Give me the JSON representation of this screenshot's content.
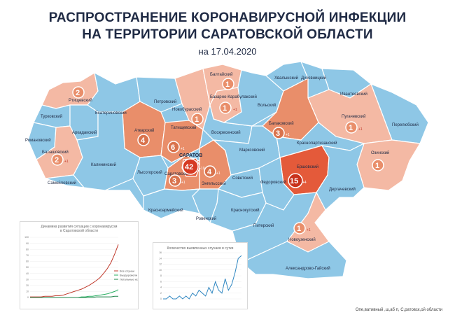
{
  "header": {
    "title_line1": "РАСПРОСТРАНЕНИЕ КОРОНАВИРУСНОЙ ИНФЕКЦИИ",
    "title_line2": "НА ТЕРРИТОРИИ САРАТОВСКОЙ ОБЛАСТИ",
    "date": "на 17.04.2020"
  },
  "colors": {
    "no_cases": "#8ec7e6",
    "low": "#f4b9a4",
    "medium": "#e98e6a",
    "high": "#e45a3a",
    "border": "#ffffff"
  },
  "districts": {
    "rtishevsky": "Ртищевский",
    "turkovsky": "Турковский",
    "arkadaksky": "Аркадакский",
    "romanovsky": "Романовский",
    "balashovsky": "Балашовский",
    "samoylovsky": "Самойловский",
    "ekaterinovsky": "Екатериновский",
    "petrovsky": "Петровский",
    "atkarsky": "Аткарский",
    "kalininsky": "Калининский",
    "lysogorsky": "Лысогорский",
    "tatishchevsky": "Татищевский",
    "saratov": "САРАТОВ",
    "saratovsky": "Саратовский",
    "engelssky": "Энгельсский",
    "krasnoarmeysky": "Красноармейский",
    "rovensky": "Ровенский",
    "krasnokutsky": "Краснокутский",
    "sovetsky": "Советский",
    "marksovsky": "Марксовский",
    "voskresensky": "Воскресенский",
    "novoburassky": "Новобурасский",
    "bazarno_karabulaksky": "Базарно-Карабулакский",
    "baltaysky": "Балтайский",
    "volsky": "Вольский",
    "khvalynsky": "Хвалынский",
    "dukhovnitsky": "Духовницкий",
    "ivanteevsky": "Ивантеевский",
    "pugachevsky": "Пугачевский",
    "perelyubsky": "Перелюбский",
    "balakovsky": "Балаковский",
    "krasnopartizansky": "Краснопартизанский",
    "ozinsky": "Озинский",
    "ershovsky": "Ершовский",
    "dergachevsky": "Дергачевский",
    "fedorovsky": "Федоровский",
    "pitersky": "Питерский",
    "novouzensky": "Новоузенский",
    "aleksandrovo_gaysky": "Александрово-Гайский"
  },
  "cases": {
    "rtishevsky": {
      "count": "2"
    },
    "balashovsky": {
      "count": "2",
      "delta": "+1"
    },
    "atkarsky": {
      "count": "4"
    },
    "tatishchevsky": {
      "count": "6",
      "delta": "+1"
    },
    "saratov": {
      "count": "42",
      "delta": "+10"
    },
    "saratovsky": {
      "count": "3",
      "delta": "+1"
    },
    "engelssky": {
      "count": "4",
      "delta": "+1"
    },
    "baltaysky": {
      "count": "1"
    },
    "bazarno_karabulaksky": {
      "count": "1",
      "delta": "+1"
    },
    "novoburassky": {
      "count": "1"
    },
    "balakovsky": {
      "count": "3",
      "delta": "+1"
    },
    "pugachevsky": {
      "count": "1",
      "delta": "+1"
    },
    "ozinsky": {
      "count": "1"
    },
    "ershovsky": {
      "count": "15",
      "delta": "+4"
    },
    "novouzensky": {
      "count": "1",
      "delta": "+1"
    }
  },
  "mini_charts": {
    "dynamics": {
      "title_line1": "Динамика развития ситуации с коронавирусом",
      "title_line2": "в Саратовской области",
      "legend": [
        "Все случаи",
        "Выздоровели",
        "Летальные исходы"
      ]
    },
    "daily": {
      "title": "Количество выявленных случаев в сутки"
    }
  },
  "chart_data": [
    {
      "type": "line",
      "title": "Динамика развития ситуации с коронавирусом в Саратовской области",
      "ylim": [
        0,
        100
      ],
      "y_ticks": [
        "100",
        "90",
        "80",
        "70",
        "60",
        "50",
        "40",
        "30",
        "20",
        "10",
        "0"
      ],
      "series": [
        {
          "name": "Все случаи",
          "color": "#c0392b",
          "values": [
            1,
            1,
            1,
            1,
            2,
            2,
            2,
            3,
            3,
            4,
            6,
            8,
            10,
            12,
            14,
            17,
            20,
            24,
            28,
            33,
            40,
            48,
            58,
            72,
            88
          ]
        },
        {
          "name": "Выздоровели",
          "color": "#27ae60",
          "values": [
            0,
            0,
            0,
            0,
            0,
            0,
            0,
            0,
            0,
            0,
            0,
            0,
            0,
            0,
            1,
            1,
            2,
            2,
            3,
            4,
            5,
            6,
            8,
            10,
            13
          ]
        },
        {
          "name": "Летальные исходы",
          "color": "#1e8449",
          "values": [
            0,
            0,
            0,
            0,
            0,
            0,
            0,
            0,
            0,
            0,
            0,
            0,
            0,
            0,
            0,
            0,
            0,
            0,
            1,
            1,
            1,
            1,
            1,
            2,
            2
          ]
        }
      ]
    },
    {
      "type": "line",
      "title": "Количество выявленных случаев в сутки",
      "ylim": [
        0,
        16
      ],
      "y_ticks": [
        "16",
        "14",
        "12",
        "10",
        "8",
        "6",
        "4",
        "2",
        "0"
      ],
      "series": [
        {
          "name": "",
          "color": "#2e86c1",
          "values": [
            0,
            0,
            1,
            0,
            0,
            1,
            0,
            1,
            0,
            2,
            1,
            3,
            2,
            1,
            4,
            2,
            6,
            3,
            2,
            7,
            3,
            5,
            9,
            14,
            15
          ]
        }
      ]
    }
  ],
  "footer": {
    "source": "Опе,вативный ,ш,аб п, С,ратовск,ой области"
  }
}
